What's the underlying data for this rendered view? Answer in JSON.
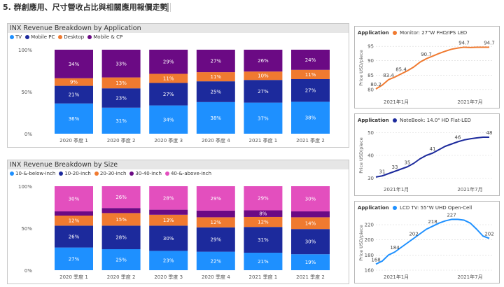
{
  "page": {
    "title": "5. 群創應用、尺寸營收占比與相關應用報價走勢"
  },
  "colors": {
    "tv": "#1e90ff",
    "mobile_pc": "#1c2a9c",
    "desktop": "#f07a30",
    "mobile_cp": "#6b0a84",
    "s10": "#1e90ff",
    "s20": "#1c2a9c",
    "s30": "#f07a30",
    "s40": "#6b0a84",
    "s40plus": "#e34fbe",
    "monitor": "#f07a30",
    "notebook": "#1c2a9c",
    "lcdtv": "#1e90ff"
  },
  "chart_data": [
    {
      "type": "bar",
      "stacked": "percent",
      "title": "INX Revenue Breakdown by Application",
      "categories": [
        "2020 季度 1",
        "2020 季度 2",
        "2020 季度 3",
        "2020 季度 4",
        "2021 季度 1",
        "2021 季度 2"
      ],
      "y_ticks": [
        "0%",
        "50%",
        "100%"
      ],
      "legend_position": "top-left",
      "series": [
        {
          "name": "TV",
          "values": [
            36,
            31,
            34,
            38,
            37,
            38
          ],
          "labels": [
            "36%",
            "31%",
            "34%",
            "38%",
            "37%",
            "38%"
          ]
        },
        {
          "name": "Mobile PC",
          "values": [
            21,
            23,
            27,
            25,
            27,
            27
          ],
          "labels": [
            "21%",
            "23%",
            "27%",
            "25%",
            "27%",
            "27%"
          ]
        },
        {
          "name": "Desktop",
          "values": [
            9,
            13,
            11,
            11,
            10,
            11
          ],
          "labels": [
            "9%",
            "13%",
            "11%",
            "11%",
            "10%",
            "11%"
          ]
        },
        {
          "name": "Mobile & CP",
          "values": [
            34,
            33,
            29,
            27,
            26,
            24
          ],
          "labels": [
            "34%",
            "33%",
            "29%",
            "27%",
            "26%",
            "24%"
          ]
        }
      ]
    },
    {
      "type": "bar",
      "stacked": "percent",
      "title": "INX Revenue Breakdown by Size",
      "categories": [
        "2020 季度 1",
        "2020 季度 2",
        "2020 季度 3",
        "2020 季度 4",
        "2021 季度 1",
        "2021 季度 2"
      ],
      "y_ticks": [
        "0%",
        "50%",
        "100%"
      ],
      "legend_position": "top-left",
      "series": [
        {
          "name": "10-&-below-inch",
          "values": [
            27,
            25,
            23,
            22,
            21,
            19
          ],
          "labels": [
            "27%",
            "25%",
            "23%",
            "22%",
            "21%",
            "19%"
          ]
        },
        {
          "name": "10-20-inch",
          "values": [
            26,
            28,
            30,
            29,
            31,
            30
          ],
          "labels": [
            "26%",
            "28%",
            "30%",
            "29%",
            "31%",
            "30%"
          ]
        },
        {
          "name": "20-30-inch",
          "values": [
            12,
            15,
            13,
            12,
            12,
            14
          ],
          "labels": [
            "12%",
            "15%",
            "13%",
            "12%",
            "12%",
            "14%"
          ]
        },
        {
          "name": "30-40-inch",
          "values": [
            5,
            6,
            6,
            8,
            8,
            7
          ],
          "labels": [
            "",
            "",
            "",
            "",
            "8%",
            ""
          ]
        },
        {
          "name": "40-&-above-inch",
          "values": [
            30,
            26,
            28,
            29,
            29,
            30
          ],
          "labels": [
            "30%",
            "26%",
            "28%",
            "29%",
            "29%",
            "30%"
          ]
        }
      ]
    },
    {
      "type": "line",
      "legend_title": "Application",
      "series_name": "Monitor: 27\"W FHD/IPS LED",
      "ylabel": "Price USD/piece",
      "x_ticks": [
        "2021年1月",
        "2021年7月"
      ],
      "y_ticks": [
        "80",
        "85",
        "90",
        "95"
      ],
      "ylim": [
        78,
        97
      ],
      "x": [
        0,
        1,
        2,
        3,
        4,
        5,
        6,
        7,
        8,
        9,
        10,
        11,
        12,
        13,
        14,
        15,
        16,
        17,
        18
      ],
      "values": [
        80.2,
        81.5,
        83.4,
        84.3,
        85.4,
        86.5,
        87.8,
        89.5,
        90.7,
        91.6,
        92.5,
        93.3,
        94.0,
        94.4,
        94.7,
        94.6,
        94.7,
        94.7,
        94.7
      ],
      "labels": [
        {
          "i": 0,
          "text": "80.2"
        },
        {
          "i": 2,
          "text": "83.4"
        },
        {
          "i": 4,
          "text": "85.4"
        },
        {
          "i": 8,
          "text": "90.7"
        },
        {
          "i": 14,
          "text": "94.7"
        },
        {
          "i": 18,
          "text": "94.7"
        }
      ]
    },
    {
      "type": "line",
      "legend_title": "Application",
      "series_name": "NoteBook: 14.0\" HD Flat-LED",
      "ylabel": "Price USD/piece",
      "x_ticks": [
        "2021年1月",
        "2021年7月"
      ],
      "y_ticks": [
        "30",
        "40",
        "50"
      ],
      "ylim": [
        28,
        52
      ],
      "x": [
        0,
        1,
        2,
        3,
        4,
        5,
        6,
        7,
        8,
        9,
        10,
        11,
        12,
        13,
        14,
        15,
        16,
        17,
        18
      ],
      "values": [
        30.5,
        31,
        32,
        33,
        34,
        35,
        36.5,
        38.5,
        40,
        41,
        42.5,
        44,
        45,
        46,
        46.8,
        47.3,
        47.7,
        48,
        48
      ],
      "labels": [
        {
          "i": 1,
          "text": "31"
        },
        {
          "i": 3,
          "text": "33"
        },
        {
          "i": 5,
          "text": "35"
        },
        {
          "i": 9,
          "text": "41"
        },
        {
          "i": 13,
          "text": "46"
        },
        {
          "i": 18,
          "text": "48"
        }
      ]
    },
    {
      "type": "line",
      "legend_title": "Application",
      "series_name": "LCD TV: 55\"W UHD Open-Cell",
      "ylabel": "Price USD/piece",
      "x_ticks": [
        "2021年1月",
        "2021年7月"
      ],
      "y_ticks": [
        "160",
        "180",
        "200",
        "220"
      ],
      "ylim": [
        160,
        232
      ],
      "x": [
        0,
        1,
        2,
        3,
        4,
        5,
        6,
        7,
        8,
        9,
        10,
        11,
        12,
        13,
        14,
        15,
        16,
        17,
        18
      ],
      "values": [
        168,
        172,
        180,
        184,
        190,
        196,
        202,
        208,
        214,
        218,
        222,
        225,
        227,
        227,
        226,
        222,
        214,
        205,
        202
      ],
      "labels": [
        {
          "i": 0,
          "text": "168"
        },
        {
          "i": 3,
          "text": "184"
        },
        {
          "i": 6,
          "text": "202"
        },
        {
          "i": 9,
          "text": "218"
        },
        {
          "i": 12,
          "text": "227"
        },
        {
          "i": 18,
          "text": "202"
        }
      ]
    }
  ]
}
